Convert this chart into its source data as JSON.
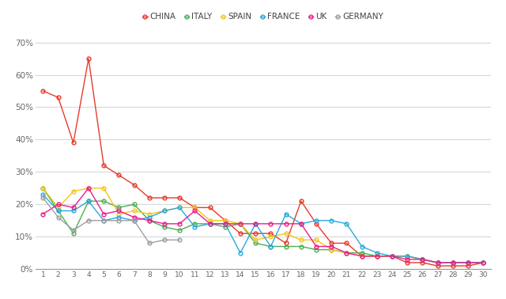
{
  "x": [
    1,
    2,
    3,
    4,
    5,
    6,
    7,
    8,
    9,
    10,
    11,
    12,
    13,
    14,
    15,
    16,
    17,
    18,
    19,
    20,
    21,
    22,
    23,
    24,
    25,
    26,
    27,
    28,
    29,
    30
  ],
  "china": [
    0.55,
    0.53,
    0.39,
    0.65,
    0.32,
    0.29,
    0.26,
    0.22,
    0.22,
    0.22,
    0.19,
    0.19,
    0.15,
    0.11,
    0.11,
    0.11,
    0.08,
    0.21,
    0.14,
    0.08,
    0.08,
    0.04,
    0.04,
    0.04,
    0.02,
    0.02,
    0.01,
    0.01,
    0.01,
    0.02
  ],
  "italy": [
    0.25,
    0.18,
    0.11,
    0.21,
    0.21,
    0.19,
    0.2,
    0.15,
    0.13,
    0.12,
    0.14,
    0.14,
    0.13,
    0.14,
    0.08,
    0.07,
    0.07,
    0.07,
    0.06,
    0.06,
    0.05,
    0.05,
    0.04,
    0.04,
    0.04,
    0.03,
    0.02,
    0.02,
    0.02,
    0.02
  ],
  "spain": [
    0.25,
    0.19,
    0.24,
    0.25,
    0.25,
    0.17,
    0.18,
    0.17,
    0.18,
    0.19,
    0.19,
    0.15,
    0.15,
    0.14,
    0.09,
    0.1,
    0.11,
    0.09,
    0.09,
    0.06,
    0.05,
    0.04,
    0.04,
    0.04,
    0.04,
    0.03,
    0.02,
    0.02,
    0.02,
    0.02
  ],
  "france": [
    0.23,
    0.18,
    0.18,
    0.21,
    0.15,
    0.16,
    0.15,
    0.16,
    0.18,
    0.19,
    0.13,
    0.14,
    0.14,
    0.05,
    0.14,
    0.07,
    0.17,
    0.14,
    0.15,
    0.15,
    0.14,
    0.07,
    0.05,
    0.04,
    0.04,
    0.03,
    0.02,
    0.02,
    0.02,
    0.02
  ],
  "uk": [
    0.17,
    0.2,
    0.19,
    0.25,
    0.17,
    0.18,
    0.16,
    0.15,
    0.14,
    0.14,
    0.18,
    0.14,
    0.14,
    0.14,
    0.14,
    0.14,
    0.14,
    0.14,
    0.07,
    0.07,
    0.05,
    0.04,
    0.04,
    0.04,
    0.03,
    0.03,
    0.02,
    0.02,
    0.02,
    0.02
  ],
  "germany": [
    0.22,
    0.16,
    0.12,
    0.15,
    0.15,
    0.15,
    0.15,
    0.08,
    0.09,
    0.09,
    null,
    null,
    null,
    null,
    null,
    null,
    null,
    null,
    null,
    null,
    null,
    null,
    null,
    null,
    null,
    null,
    null,
    null,
    null,
    null
  ],
  "colors": {
    "china": "#e8392a",
    "italy": "#4caf50",
    "spain": "#f5c518",
    "france": "#29a8e0",
    "uk": "#e91e8c",
    "germany": "#9e9e9e"
  },
  "ylim": [
    0,
    0.72
  ],
  "yticks": [
    0,
    0.1,
    0.2,
    0.3,
    0.4,
    0.5,
    0.6,
    0.7
  ],
  "ytick_labels": [
    "0%",
    "10%",
    "20%",
    "30%",
    "40%",
    "50%",
    "60%",
    "70%"
  ],
  "plot_bg": "#ffffff",
  "figsize": [
    6.4,
    3.78
  ],
  "dpi": 100
}
